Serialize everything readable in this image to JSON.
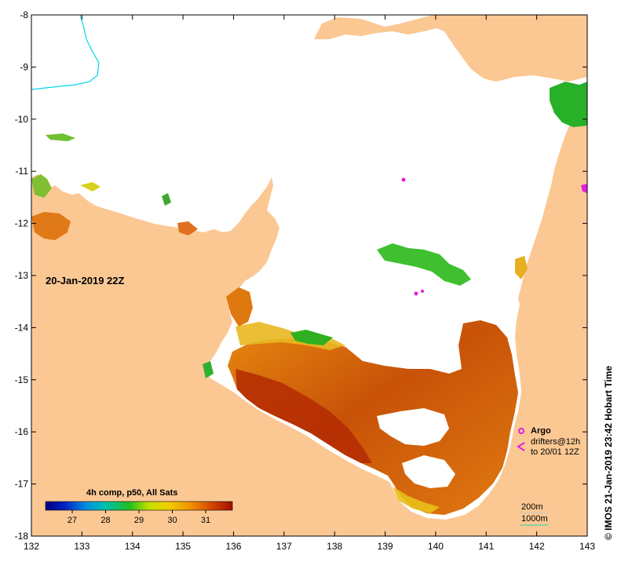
{
  "map": {
    "date_label": "20-Jan-2019 22Z",
    "colors": {
      "land": "#fbc893",
      "water": "#ffffff",
      "frame": "#000000",
      "river": "#00d8e8",
      "argo": "#e020e0",
      "contour": "#30d0b0"
    },
    "x_axis": {
      "ticks": [
        "132",
        "133",
        "134",
        "135",
        "136",
        "137",
        "138",
        "139",
        "140",
        "141",
        "142",
        "143"
      ]
    },
    "y_axis": {
      "ticks": [
        "-8",
        "-9",
        "-10",
        "-11",
        "-12",
        "-13",
        "-14",
        "-15",
        "-16",
        "-17",
        "-18"
      ]
    },
    "colorbar": {
      "title": "4h comp, p50, All Sats",
      "ticks": [
        "27",
        "28",
        "29",
        "30",
        "31"
      ]
    },
    "legend": {
      "argo_label": "Argo",
      "drifters_line1": "drifters@12h",
      "drifters_line2": "to 20/01 12Z",
      "contour_200": "200m",
      "contour_1000": "1000m"
    },
    "credit": "© IMOS 21-Jan-2019 23:42 Hobart Time"
  }
}
